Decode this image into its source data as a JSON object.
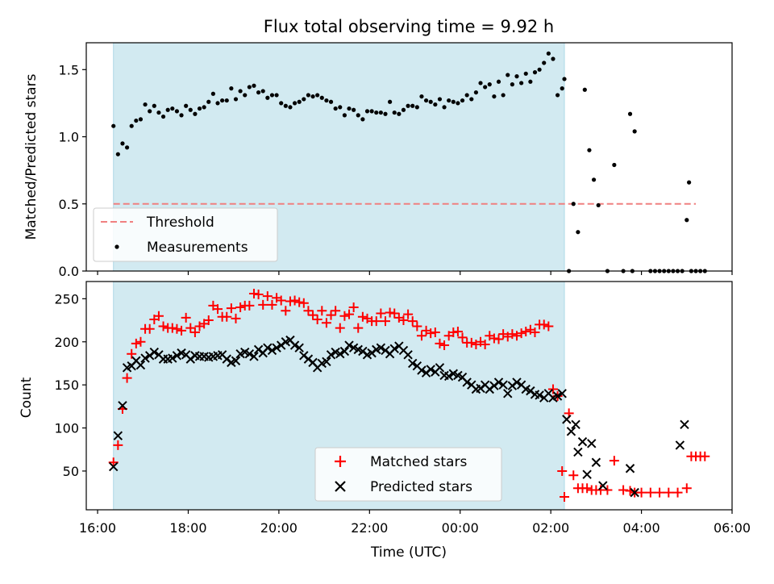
{
  "title": "Flux total observing time = 9.92 h",
  "colors": {
    "shade": "#add8e6",
    "matched": "#ff0000",
    "predicted": "#000000",
    "threshold": "#f08080"
  },
  "chart_data": [
    {
      "type": "scatter",
      "ylabel": "Matched/Predicted stars",
      "xlim_hours": [
        15.75,
        30.0
      ],
      "ylim": [
        0,
        1.7
      ],
      "yticks": [
        0.0,
        0.5,
        1.0,
        1.5
      ],
      "ytick_labels": [
        "0.0",
        "0.5",
        "1.0",
        "1.5"
      ],
      "shaded_interval_hours": [
        16.35,
        26.3
      ],
      "threshold": {
        "label": "Threshold",
        "value": 0.5,
        "x_start_hours": 16.35,
        "x_end_hours": 29.2
      },
      "legend": {
        "placement": "lower left",
        "entries": [
          "Threshold",
          "Measurements"
        ]
      },
      "series": [
        {
          "name": "Measurements",
          "x_hours": [
            16.35,
            16.45,
            16.55,
            16.65,
            16.75,
            16.85,
            16.95,
            17.05,
            17.15,
            17.25,
            17.35,
            17.45,
            17.55,
            17.65,
            17.75,
            17.85,
            17.95,
            18.05,
            18.15,
            18.25,
            18.35,
            18.45,
            18.55,
            18.65,
            18.75,
            18.85,
            18.95,
            19.05,
            19.15,
            19.25,
            19.35,
            19.45,
            19.55,
            19.65,
            19.75,
            19.85,
            19.95,
            20.05,
            20.15,
            20.25,
            20.35,
            20.45,
            20.55,
            20.65,
            20.75,
            20.85,
            20.95,
            21.05,
            21.15,
            21.25,
            21.35,
            21.45,
            21.55,
            21.65,
            21.75,
            21.85,
            21.95,
            22.05,
            22.15,
            22.25,
            22.35,
            22.45,
            22.55,
            22.65,
            22.75,
            22.85,
            22.95,
            23.05,
            23.15,
            23.25,
            23.35,
            23.45,
            23.55,
            23.65,
            23.75,
            23.85,
            23.95,
            24.05,
            24.15,
            24.25,
            24.35,
            24.45,
            24.55,
            24.65,
            24.75,
            24.85,
            24.95,
            25.05,
            25.15,
            25.25,
            25.35,
            25.45,
            25.55,
            25.65,
            25.75,
            25.85,
            25.95,
            26.05,
            26.15,
            26.25,
            26.3,
            26.4,
            26.5,
            26.6,
            26.75,
            26.85,
            26.95,
            27.05,
            27.25,
            27.4,
            27.6,
            27.75,
            27.8,
            27.85,
            28.2,
            28.3,
            28.4,
            28.5,
            28.6,
            28.7,
            28.8,
            28.9,
            29.0,
            29.05,
            29.1,
            29.2,
            29.3,
            29.4
          ],
          "y": [
            1.08,
            0.87,
            0.95,
            0.92,
            1.08,
            1.12,
            1.13,
            1.24,
            1.19,
            1.23,
            1.18,
            1.15,
            1.2,
            1.21,
            1.19,
            1.16,
            1.23,
            1.2,
            1.17,
            1.21,
            1.22,
            1.26,
            1.32,
            1.25,
            1.27,
            1.27,
            1.36,
            1.28,
            1.34,
            1.31,
            1.37,
            1.38,
            1.33,
            1.34,
            1.29,
            1.31,
            1.31,
            1.25,
            1.23,
            1.22,
            1.25,
            1.26,
            1.28,
            1.31,
            1.3,
            1.31,
            1.29,
            1.27,
            1.26,
            1.21,
            1.22,
            1.16,
            1.21,
            1.2,
            1.16,
            1.13,
            1.19,
            1.19,
            1.18,
            1.18,
            1.17,
            1.26,
            1.18,
            1.17,
            1.2,
            1.23,
            1.23,
            1.22,
            1.3,
            1.27,
            1.26,
            1.24,
            1.28,
            1.22,
            1.27,
            1.26,
            1.25,
            1.27,
            1.31,
            1.28,
            1.33,
            1.4,
            1.37,
            1.39,
            1.3,
            1.41,
            1.31,
            1.46,
            1.39,
            1.45,
            1.4,
            1.47,
            1.41,
            1.48,
            1.5,
            1.55,
            1.62,
            1.58,
            1.31,
            1.36,
            1.43,
            0.0,
            0.5,
            0.29,
            1.35,
            0.9,
            0.68,
            0.49,
            0.0,
            0.79,
            0.0,
            1.17,
            0.0,
            1.04,
            0.0,
            0.0,
            0.0,
            0.0,
            0.0,
            0.0,
            0.0,
            0.0,
            0.38,
            0.66,
            0.0,
            0.0,
            0.0,
            0.0
          ]
        }
      ]
    },
    {
      "type": "scatter",
      "xlabel": "Time (UTC)",
      "ylabel": "Count",
      "xlim_hours": [
        15.75,
        30.0
      ],
      "ylim": [
        5,
        270
      ],
      "yticks": [
        50,
        100,
        150,
        200,
        250
      ],
      "ytick_labels": [
        "50",
        "100",
        "150",
        "200",
        "250"
      ],
      "xticks_hours": [
        16,
        18,
        20,
        22,
        24,
        26,
        28,
        30
      ],
      "xtick_labels": [
        "16:00",
        "18:00",
        "20:00",
        "22:00",
        "00:00",
        "02:00",
        "04:00",
        "06:00"
      ],
      "shaded_interval_hours": [
        16.35,
        26.3
      ],
      "legend": {
        "placement": "lower center",
        "entries": [
          "Matched stars",
          "Predicted stars"
        ]
      },
      "series": [
        {
          "name": "Matched stars",
          "marker": "+",
          "x_hours": [
            16.35,
            16.45,
            16.55,
            16.65,
            16.75,
            16.85,
            16.95,
            17.05,
            17.15,
            17.25,
            17.35,
            17.45,
            17.55,
            17.65,
            17.75,
            17.85,
            17.95,
            18.05,
            18.15,
            18.25,
            18.35,
            18.45,
            18.55,
            18.65,
            18.75,
            18.85,
            18.95,
            19.05,
            19.15,
            19.25,
            19.35,
            19.45,
            19.55,
            19.65,
            19.75,
            19.85,
            19.95,
            20.05,
            20.15,
            20.25,
            20.35,
            20.45,
            20.55,
            20.65,
            20.75,
            20.85,
            20.95,
            21.05,
            21.15,
            21.25,
            21.35,
            21.45,
            21.55,
            21.65,
            21.75,
            21.85,
            21.95,
            22.05,
            22.15,
            22.25,
            22.35,
            22.45,
            22.55,
            22.65,
            22.75,
            22.85,
            22.95,
            23.05,
            23.15,
            23.25,
            23.35,
            23.45,
            23.55,
            23.65,
            23.75,
            23.85,
            23.95,
            24.05,
            24.15,
            24.25,
            24.35,
            24.45,
            24.55,
            24.65,
            24.75,
            24.85,
            24.95,
            25.05,
            25.15,
            25.25,
            25.35,
            25.45,
            25.55,
            25.65,
            25.75,
            25.85,
            25.95,
            26.05,
            26.15,
            26.25,
            26.3,
            26.4,
            26.5,
            26.6,
            26.7,
            26.8,
            26.9,
            27.0,
            27.1,
            27.25,
            27.4,
            27.6,
            27.75,
            27.85,
            28.0,
            28.2,
            28.4,
            28.6,
            28.8,
            29.0,
            29.1,
            29.2,
            29.3,
            29.4
          ],
          "y": [
            60,
            80,
            122,
            158,
            186,
            198,
            200,
            215,
            215,
            226,
            230,
            218,
            216,
            216,
            215,
            213,
            228,
            216,
            211,
            218,
            221,
            225,
            242,
            238,
            229,
            229,
            239,
            227,
            240,
            242,
            242,
            256,
            255,
            243,
            253,
            243,
            251,
            248,
            236,
            247,
            248,
            246,
            245,
            236,
            231,
            226,
            236,
            222,
            231,
            236,
            216,
            230,
            232,
            240,
            216,
            229,
            227,
            224,
            224,
            233,
            224,
            234,
            233,
            228,
            225,
            232,
            224,
            218,
            207,
            213,
            210,
            211,
            198,
            196,
            207,
            211,
            212,
            205,
            199,
            199,
            197,
            200,
            197,
            207,
            204,
            203,
            209,
            206,
            209,
            207,
            210,
            212,
            214,
            211,
            220,
            220,
            218,
            145,
            137,
            50,
            20,
            117,
            45,
            30,
            30,
            30,
            28,
            28,
            28,
            28,
            62,
            28,
            27,
            25,
            25,
            25,
            25,
            25,
            25,
            30,
            67,
            67,
            67,
            67
          ]
        },
        {
          "name": "Predicted stars",
          "marker": "x",
          "x_hours": [
            16.35,
            16.45,
            16.55,
            16.65,
            16.75,
            16.85,
            16.95,
            17.05,
            17.15,
            17.25,
            17.35,
            17.45,
            17.55,
            17.65,
            17.75,
            17.85,
            17.95,
            18.05,
            18.15,
            18.25,
            18.35,
            18.45,
            18.55,
            18.65,
            18.75,
            18.85,
            18.95,
            19.05,
            19.15,
            19.25,
            19.35,
            19.45,
            19.55,
            19.65,
            19.75,
            19.85,
            19.95,
            20.05,
            20.15,
            20.25,
            20.35,
            20.45,
            20.55,
            20.65,
            20.75,
            20.85,
            20.95,
            21.05,
            21.15,
            21.25,
            21.35,
            21.45,
            21.55,
            21.65,
            21.75,
            21.85,
            21.95,
            22.05,
            22.15,
            22.25,
            22.35,
            22.45,
            22.55,
            22.65,
            22.75,
            22.85,
            22.95,
            23.05,
            23.15,
            23.25,
            23.35,
            23.45,
            23.55,
            23.65,
            23.75,
            23.85,
            23.95,
            24.05,
            24.15,
            24.25,
            24.35,
            24.45,
            24.55,
            24.65,
            24.75,
            24.85,
            24.95,
            25.05,
            25.15,
            25.25,
            25.35,
            25.45,
            25.55,
            25.65,
            25.75,
            25.85,
            25.95,
            26.05,
            26.15,
            26.25,
            26.35,
            26.45,
            26.55,
            26.6,
            26.7,
            26.8,
            26.9,
            27.0,
            27.15,
            27.75,
            27.85,
            28.85,
            28.95
          ],
          "y": [
            55,
            91,
            126,
            170,
            172,
            178,
            173,
            181,
            184,
            188,
            185,
            180,
            180,
            181,
            184,
            187,
            185,
            180,
            184,
            183,
            183,
            182,
            183,
            184,
            185,
            180,
            176,
            178,
            186,
            188,
            186,
            183,
            191,
            187,
            193,
            190,
            193,
            196,
            200,
            202,
            196,
            193,
            184,
            180,
            176,
            170,
            175,
            177,
            185,
            188,
            186,
            189,
            196,
            193,
            191,
            189,
            185,
            187,
            191,
            193,
            190,
            186,
            192,
            195,
            190,
            185,
            175,
            172,
            167,
            164,
            168,
            165,
            170,
            161,
            160,
            163,
            161,
            159,
            153,
            150,
            145,
            146,
            150,
            145,
            149,
            153,
            150,
            140,
            149,
            153,
            150,
            145,
            143,
            139,
            138,
            135,
            140,
            135,
            137,
            140,
            110,
            96,
            104,
            72,
            84,
            46,
            82,
            60,
            33,
            53,
            25,
            80,
            104
          ]
        }
      ]
    }
  ]
}
